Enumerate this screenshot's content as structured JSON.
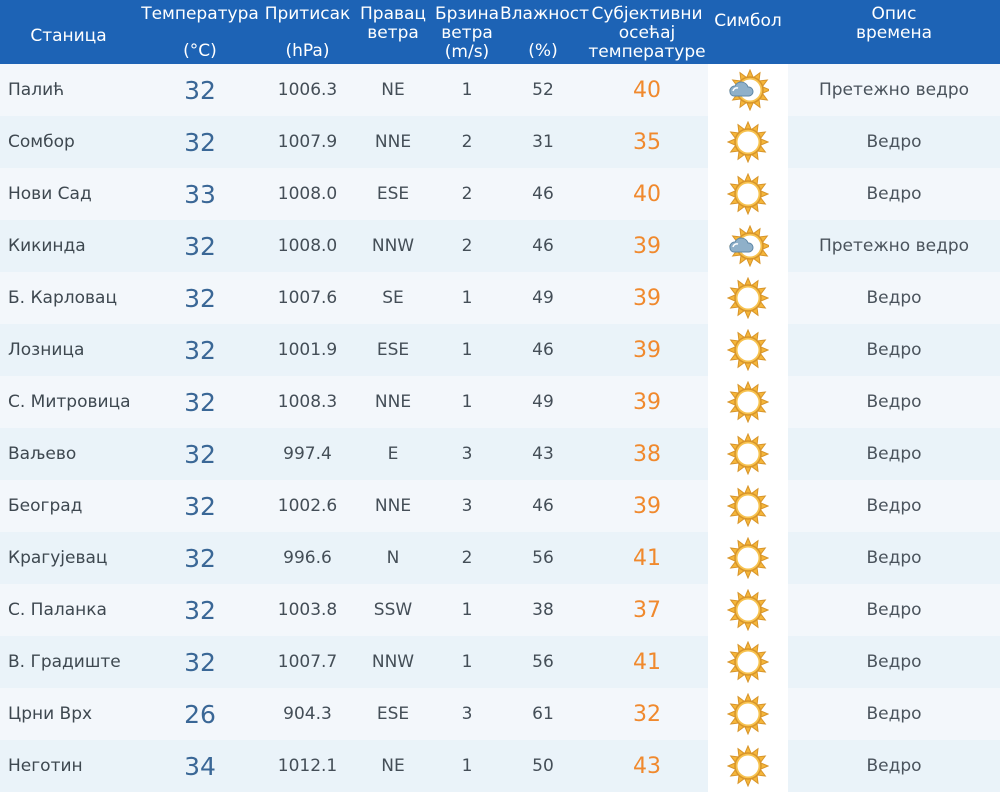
{
  "headers": {
    "station": "Станица",
    "temperature": [
      "Температура",
      "(°C)"
    ],
    "pressure": [
      "Притисак",
      "(hPa)"
    ],
    "wind_dir": [
      "Правац",
      "ветра"
    ],
    "wind_speed": [
      "Брзина",
      "ветра",
      "(m/s)"
    ],
    "humidity": [
      "Влажност",
      "(%)"
    ],
    "feels_like": [
      "Субјективни",
      "осећај",
      "температуре"
    ],
    "symbol": "Симбол",
    "description": [
      "Опис",
      "времена"
    ]
  },
  "colors": {
    "header_bg": "#1d63b5",
    "feels_like": "#f0892d",
    "temperature": "#3a6796"
  },
  "rows": [
    {
      "station": "Палић",
      "temp": "32",
      "pressure": "1006.3",
      "wind_dir": "NE",
      "wind_speed": "1",
      "humidity": "52",
      "feels": "40",
      "symbol": "sun-cloud-icon",
      "desc": "Претежно ведро"
    },
    {
      "station": "Сомбор",
      "temp": "32",
      "pressure": "1007.9",
      "wind_dir": "NNE",
      "wind_speed": "2",
      "humidity": "31",
      "feels": "35",
      "symbol": "sun-icon",
      "desc": "Ведро"
    },
    {
      "station": "Нови Сад",
      "temp": "33",
      "pressure": "1008.0",
      "wind_dir": "ESE",
      "wind_speed": "2",
      "humidity": "46",
      "feels": "40",
      "symbol": "sun-icon",
      "desc": "Ведро"
    },
    {
      "station": "Кикинда",
      "temp": "32",
      "pressure": "1008.0",
      "wind_dir": "NNW",
      "wind_speed": "2",
      "humidity": "46",
      "feels": "39",
      "symbol": "sun-cloud-icon",
      "desc": "Претежно ведро"
    },
    {
      "station": "Б. Карловац",
      "temp": "32",
      "pressure": "1007.6",
      "wind_dir": "SE",
      "wind_speed": "1",
      "humidity": "49",
      "feels": "39",
      "symbol": "sun-icon",
      "desc": "Ведро"
    },
    {
      "station": "Лозница",
      "temp": "32",
      "pressure": "1001.9",
      "wind_dir": "ESE",
      "wind_speed": "1",
      "humidity": "46",
      "feels": "39",
      "symbol": "sun-icon",
      "desc": "Ведро"
    },
    {
      "station": "С. Митровица",
      "temp": "32",
      "pressure": "1008.3",
      "wind_dir": "NNE",
      "wind_speed": "1",
      "humidity": "49",
      "feels": "39",
      "symbol": "sun-icon",
      "desc": "Ведро"
    },
    {
      "station": "Ваљево",
      "temp": "32",
      "pressure": "997.4",
      "wind_dir": "E",
      "wind_speed": "3",
      "humidity": "43",
      "feels": "38",
      "symbol": "sun-icon",
      "desc": "Ведро"
    },
    {
      "station": "Београд",
      "temp": "32",
      "pressure": "1002.6",
      "wind_dir": "NNE",
      "wind_speed": "3",
      "humidity": "46",
      "feels": "39",
      "symbol": "sun-icon",
      "desc": "Ведро"
    },
    {
      "station": "Крагујевац",
      "temp": "32",
      "pressure": "996.6",
      "wind_dir": "N",
      "wind_speed": "2",
      "humidity": "56",
      "feels": "41",
      "symbol": "sun-icon",
      "desc": "Ведро"
    },
    {
      "station": "С. Паланка",
      "temp": "32",
      "pressure": "1003.8",
      "wind_dir": "SSW",
      "wind_speed": "1",
      "humidity": "38",
      "feels": "37",
      "symbol": "sun-icon",
      "desc": "Ведро"
    },
    {
      "station": "В. Градиште",
      "temp": "32",
      "pressure": "1007.7",
      "wind_dir": "NNW",
      "wind_speed": "1",
      "humidity": "56",
      "feels": "41",
      "symbol": "sun-icon",
      "desc": "Ведро"
    },
    {
      "station": "Црни Врх",
      "temp": "26",
      "pressure": "904.3",
      "wind_dir": "ESE",
      "wind_speed": "3",
      "humidity": "61",
      "feels": "32",
      "symbol": "sun-icon",
      "desc": "Ведро"
    },
    {
      "station": "Неготин",
      "temp": "34",
      "pressure": "1012.1",
      "wind_dir": "NE",
      "wind_speed": "1",
      "humidity": "50",
      "feels": "43",
      "symbol": "sun-icon",
      "desc": "Ведро"
    }
  ]
}
